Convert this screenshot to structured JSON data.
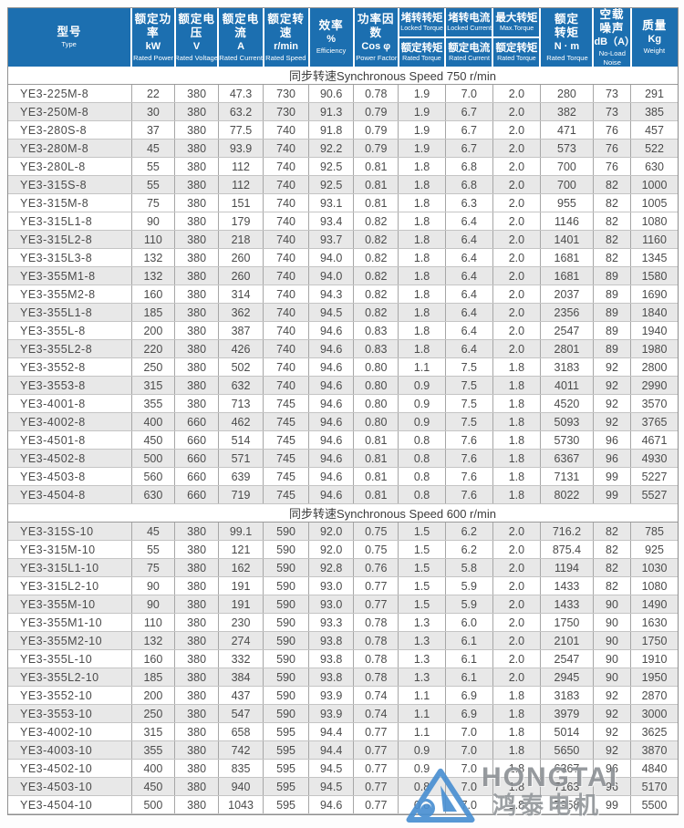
{
  "table": {
    "columns": [
      {
        "zh": "型号",
        "en": "Type"
      },
      {
        "zh": "额定功率",
        "unit": "kW",
        "en": "Rated Power"
      },
      {
        "zh": "额定电压",
        "unit": "V",
        "en": "Rated Voltage"
      },
      {
        "zh": "额定电流",
        "unit": "A",
        "en": "Rated Current"
      },
      {
        "zh": "额定转速",
        "unit": "r/min",
        "en": "Rated Speed"
      },
      {
        "zh": "效率",
        "unit": "%",
        "en": "Efficiency"
      },
      {
        "zh": "功率因数",
        "unit": "Cos φ",
        "en": "Power Factor"
      },
      {
        "top": {
          "zh": "堵转转矩",
          "en": "Locked Torque"
        },
        "bottom": {
          "zh": "额定转矩",
          "en": "Rated Torque"
        }
      },
      {
        "top": {
          "zh": "堵转电流",
          "en": "Locked Current"
        },
        "bottom": {
          "zh": "额定电流",
          "en": "Rated Current"
        }
      },
      {
        "top": {
          "zh": "最大转矩",
          "en": "Max.Torque"
        },
        "bottom": {
          "zh": "额定转矩",
          "en": "Rated Torque"
        }
      },
      {
        "zh": "额定",
        "zh2": "转矩",
        "unit": "N · m",
        "en": "Rated Torque"
      },
      {
        "zh": "空载",
        "zh2": "噪声",
        "unit": "dB（A）",
        "en": "No-Load",
        "en2": "Noise"
      },
      {
        "zh": "质量",
        "unit": "Kg",
        "en": "Weight"
      }
    ],
    "sections": [
      {
        "title": "同步转速Synchronous Speed 750 r/min",
        "shaded": [
          false,
          true,
          false,
          true,
          false,
          true,
          false,
          false,
          true,
          false,
          true,
          false,
          true,
          false,
          true,
          false,
          true,
          false,
          true,
          false,
          true,
          false,
          true
        ],
        "rows": [
          [
            "YE3-225M-8",
            "22",
            "380",
            "47.3",
            "730",
            "90.6",
            "0.78",
            "1.9",
            "7.0",
            "2.0",
            "280",
            "73",
            "291"
          ],
          [
            "YE3-250M-8",
            "30",
            "380",
            "63.2",
            "730",
            "91.3",
            "0.79",
            "1.9",
            "6.7",
            "2.0",
            "382",
            "73",
            "385"
          ],
          [
            "YE3-280S-8",
            "37",
            "380",
            "77.5",
            "740",
            "91.8",
            "0.79",
            "1.9",
            "6.7",
            "2.0",
            "471",
            "76",
            "457"
          ],
          [
            "YE3-280M-8",
            "45",
            "380",
            "93.9",
            "740",
            "92.2",
            "0.79",
            "1.9",
            "6.7",
            "2.0",
            "573",
            "76",
            "522"
          ],
          [
            "YE3-280L-8",
            "55",
            "380",
            "112",
            "740",
            "92.5",
            "0.81",
            "1.8",
            "6.8",
            "2.0",
            "700",
            "76",
            "630"
          ],
          [
            "YE3-315S-8",
            "55",
            "380",
            "112",
            "740",
            "92.5",
            "0.81",
            "1.8",
            "6.8",
            "2.0",
            "700",
            "82",
            "1000"
          ],
          [
            "YE3-315M-8",
            "75",
            "380",
            "151",
            "740",
            "93.1",
            "0.81",
            "1.8",
            "6.3",
            "2.0",
            "955",
            "82",
            "1005"
          ],
          [
            "YE3-315L1-8",
            "90",
            "380",
            "179",
            "740",
            "93.4",
            "0.82",
            "1.8",
            "6.4",
            "2.0",
            "1146",
            "82",
            "1080"
          ],
          [
            "YE3-315L2-8",
            "110",
            "380",
            "218",
            "740",
            "93.7",
            "0.82",
            "1.8",
            "6.4",
            "2.0",
            "1401",
            "82",
            "1160"
          ],
          [
            "YE3-315L3-8",
            "132",
            "380",
            "260",
            "740",
            "94.0",
            "0.82",
            "1.8",
            "6.4",
            "2.0",
            "1681",
            "82",
            "1345"
          ],
          [
            "YE3-355M1-8",
            "132",
            "380",
            "260",
            "740",
            "94.0",
            "0.82",
            "1.8",
            "6.4",
            "2.0",
            "1681",
            "89",
            "1580"
          ],
          [
            "YE3-355M2-8",
            "160",
            "380",
            "314",
            "740",
            "94.3",
            "0.82",
            "1.8",
            "6.4",
            "2.0",
            "2037",
            "89",
            "1690"
          ],
          [
            "YE3-355L1-8",
            "185",
            "380",
            "362",
            "740",
            "94.5",
            "0.82",
            "1.8",
            "6.4",
            "2.0",
            "2356",
            "89",
            "1840"
          ],
          [
            "YE3-355L-8",
            "200",
            "380",
            "387",
            "740",
            "94.6",
            "0.83",
            "1.8",
            "6.4",
            "2.0",
            "2547",
            "89",
            "1940"
          ],
          [
            "YE3-355L2-8",
            "220",
            "380",
            "426",
            "740",
            "94.6",
            "0.83",
            "1.8",
            "6.4",
            "2.0",
            "2801",
            "89",
            "1980"
          ],
          [
            "YE3-3552-8",
            "250",
            "380",
            "502",
            "740",
            "94.6",
            "0.80",
            "1.1",
            "7.5",
            "1.8",
            "3183",
            "92",
            "2800"
          ],
          [
            "YE3-3553-8",
            "315",
            "380",
            "632",
            "740",
            "94.6",
            "0.80",
            "0.9",
            "7.5",
            "1.8",
            "4011",
            "92",
            "2990"
          ],
          [
            "YE3-4001-8",
            "355",
            "380",
            "713",
            "745",
            "94.6",
            "0.80",
            "0.9",
            "7.5",
            "1.8",
            "4520",
            "92",
            "3570"
          ],
          [
            "YE3-4002-8",
            "400",
            "660",
            "462",
            "745",
            "94.6",
            "0.80",
            "0.9",
            "7.5",
            "1.8",
            "5093",
            "92",
            "3765"
          ],
          [
            "YE3-4501-8",
            "450",
            "660",
            "514",
            "745",
            "94.6",
            "0.81",
            "0.8",
            "7.6",
            "1.8",
            "5730",
            "96",
            "4671"
          ],
          [
            "YE3-4502-8",
            "500",
            "660",
            "571",
            "745",
            "94.6",
            "0.81",
            "0.8",
            "7.6",
            "1.8",
            "6367",
            "96",
            "4930"
          ],
          [
            "YE3-4503-8",
            "560",
            "660",
            "639",
            "745",
            "94.6",
            "0.81",
            "0.8",
            "7.6",
            "1.8",
            "7131",
            "99",
            "5227"
          ],
          [
            "YE3-4504-8",
            "630",
            "660",
            "719",
            "745",
            "94.6",
            "0.81",
            "0.8",
            "7.6",
            "1.8",
            "8022",
            "99",
            "5527"
          ]
        ]
      },
      {
        "title": "同步转速Synchronous Speed 600 r/min",
        "shaded": [
          true,
          false,
          true,
          false,
          true,
          false,
          true,
          false,
          true,
          false,
          true,
          false,
          true,
          false,
          true,
          false
        ],
        "rows": [
          [
            "YE3-315S-10",
            "45",
            "380",
            "99.1",
            "590",
            "92.0",
            "0.75",
            "1.5",
            "6.2",
            "2.0",
            "716.2",
            "82",
            "785"
          ],
          [
            "YE3-315M-10",
            "55",
            "380",
            "121",
            "590",
            "92.0",
            "0.75",
            "1.5",
            "6.2",
            "2.0",
            "875.4",
            "82",
            "925"
          ],
          [
            "YE3-315L1-10",
            "75",
            "380",
            "162",
            "590",
            "92.8",
            "0.76",
            "1.5",
            "5.8",
            "2.0",
            "1194",
            "82",
            "1030"
          ],
          [
            "YE3-315L2-10",
            "90",
            "380",
            "191",
            "590",
            "93.0",
            "0.77",
            "1.5",
            "5.9",
            "2.0",
            "1433",
            "82",
            "1080"
          ],
          [
            "YE3-355M-10",
            "90",
            "380",
            "191",
            "590",
            "93.0",
            "0.77",
            "1.5",
            "5.9",
            "2.0",
            "1433",
            "90",
            "1490"
          ],
          [
            "YE3-355M1-10",
            "110",
            "380",
            "230",
            "590",
            "93.3",
            "0.78",
            "1.3",
            "6.0",
            "2.0",
            "1750",
            "90",
            "1630"
          ],
          [
            "YE3-355M2-10",
            "132",
            "380",
            "274",
            "590",
            "93.8",
            "0.78",
            "1.3",
            "6.1",
            "2.0",
            "2101",
            "90",
            "1750"
          ],
          [
            "YE3-355L-10",
            "160",
            "380",
            "332",
            "590",
            "93.8",
            "0.78",
            "1.3",
            "6.1",
            "2.0",
            "2547",
            "90",
            "1910"
          ],
          [
            "YE3-355L2-10",
            "185",
            "380",
            "384",
            "590",
            "93.8",
            "0.78",
            "1.3",
            "6.1",
            "2.0",
            "2945",
            "90",
            "1950"
          ],
          [
            "YE3-3552-10",
            "200",
            "380",
            "437",
            "590",
            "93.9",
            "0.74",
            "1.1",
            "6.9",
            "1.8",
            "3183",
            "92",
            "2870"
          ],
          [
            "YE3-3553-10",
            "250",
            "380",
            "547",
            "590",
            "93.9",
            "0.74",
            "1.1",
            "6.9",
            "1.8",
            "3979",
            "92",
            "3000"
          ],
          [
            "YE3-4002-10",
            "315",
            "380",
            "658",
            "595",
            "94.4",
            "0.77",
            "1.1",
            "7.0",
            "1.8",
            "5014",
            "92",
            "3625"
          ],
          [
            "YE3-4003-10",
            "355",
            "380",
            "742",
            "595",
            "94.4",
            "0.77",
            "0.9",
            "7.0",
            "1.8",
            "5650",
            "92",
            "3870"
          ],
          [
            "YE3-4502-10",
            "400",
            "380",
            "835",
            "595",
            "94.5",
            "0.77",
            "0.9",
            "7.0",
            "1.8",
            "6367",
            "96",
            "4840"
          ],
          [
            "YE3-4503-10",
            "450",
            "380",
            "940",
            "595",
            "94.5",
            "0.77",
            "0.8",
            "7.0",
            "1.8",
            "7163",
            "96",
            "5170"
          ],
          [
            "YE3-4504-10",
            "500",
            "380",
            "1043",
            "595",
            "94.6",
            "0.77",
            "0.8",
            "7.0",
            "1.8",
            "7958",
            "99",
            "5500"
          ]
        ]
      }
    ]
  },
  "watermark": {
    "brand": "HONGTAI",
    "brand_zh": "鸿泰电机",
    "logo": "triangle-swirl-logo",
    "logo_color": "#4a90d2",
    "text_color": "#8e9296"
  },
  "colors": {
    "header_blue": "#1c6fb0",
    "stripe_gray": "#e8e8e8",
    "grid_gray": "#a6a6a6",
    "outer_border": "#8f8f8f"
  }
}
